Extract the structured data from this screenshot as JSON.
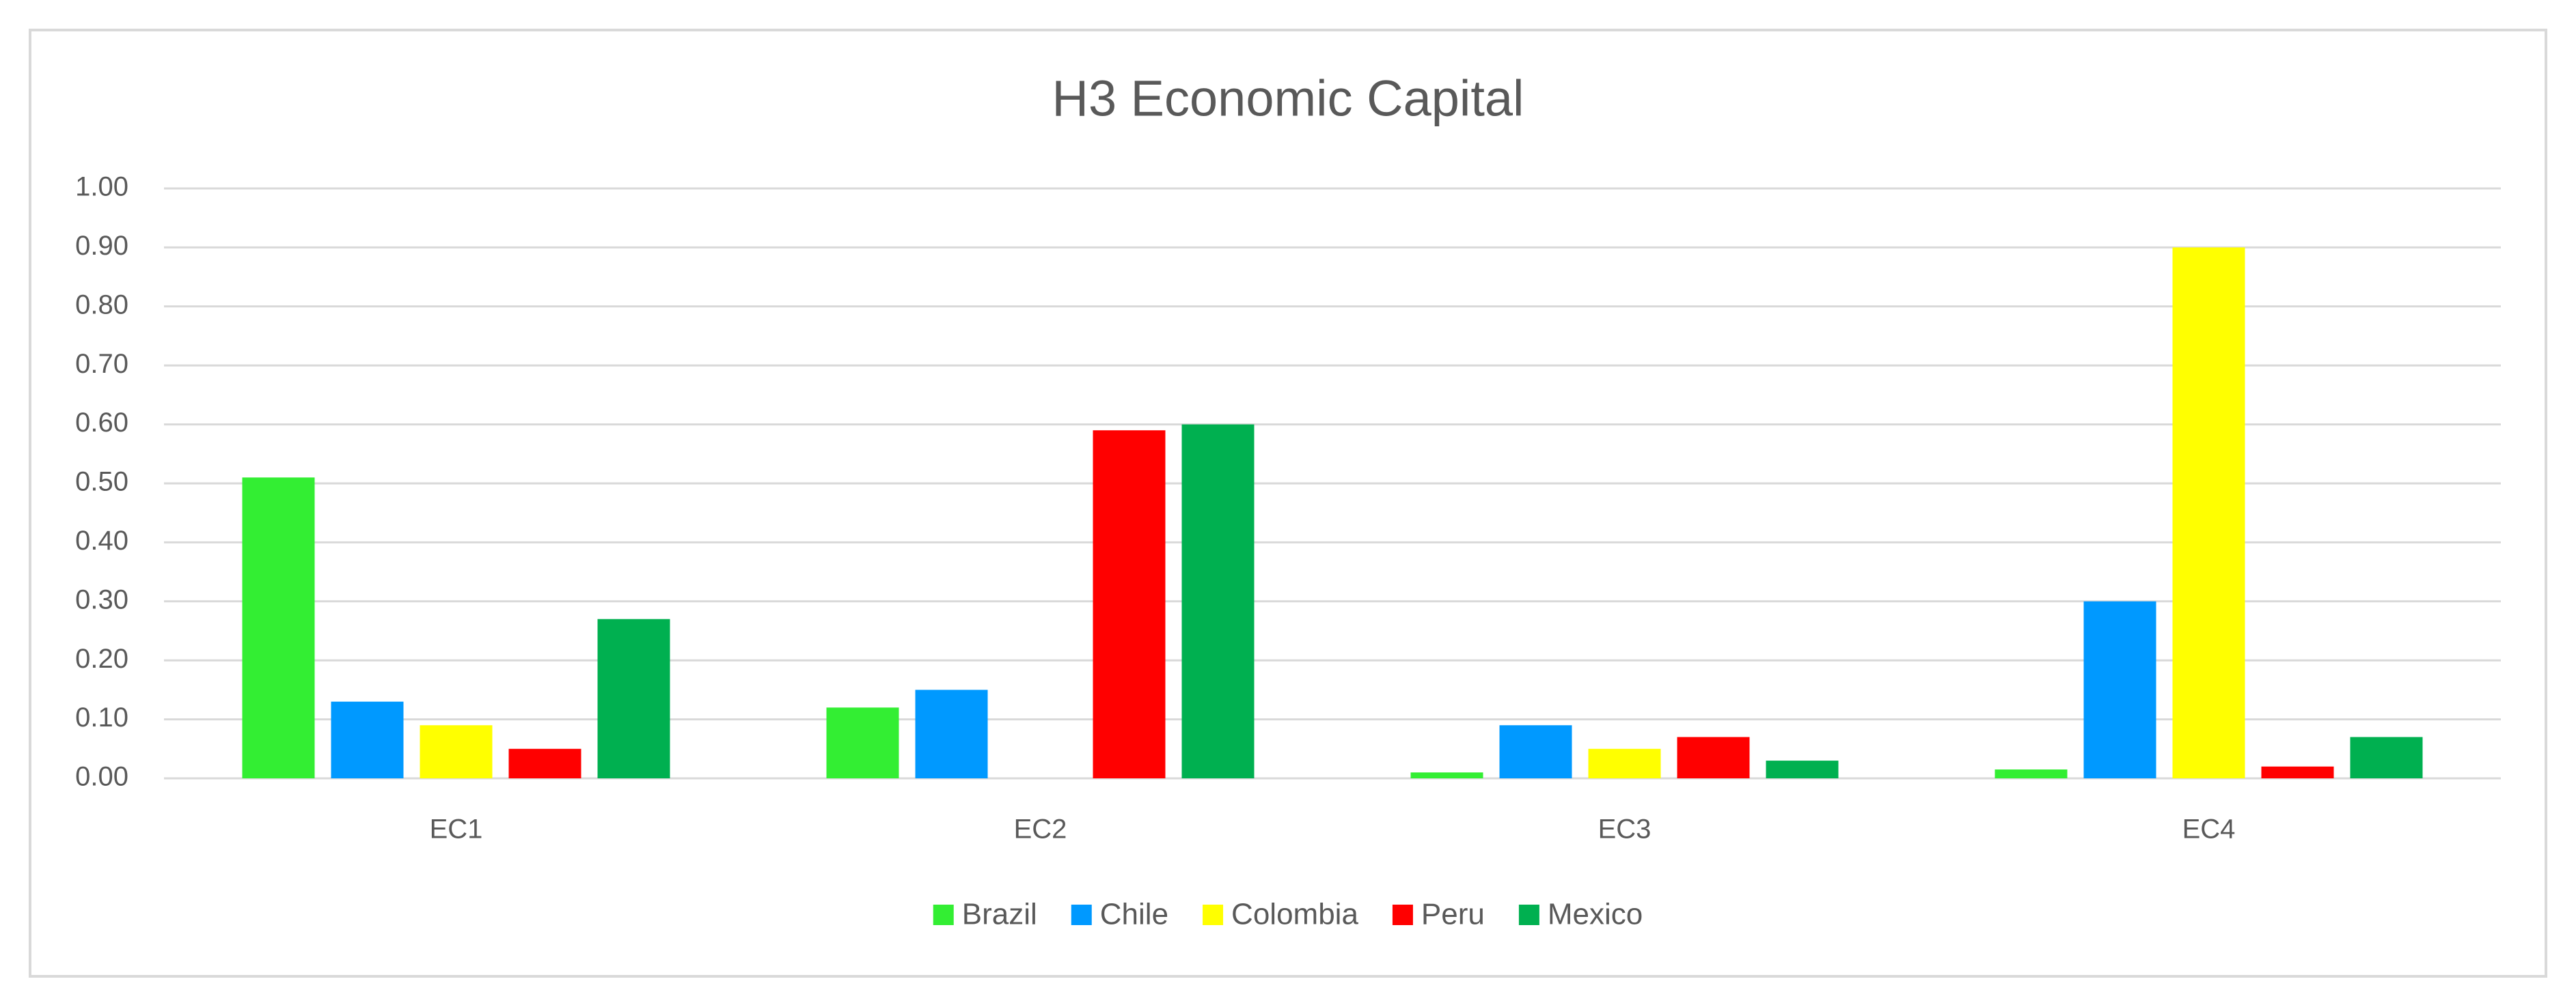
{
  "chart_data": {
    "type": "bar",
    "title": "H3 Economic Capital",
    "categories": [
      "EC1",
      "EC2",
      "EC3",
      "EC4"
    ],
    "series": [
      {
        "name": "Brazil",
        "color": "#33ee33",
        "values": [
          0.51,
          0.12,
          0.01,
          0.015
        ]
      },
      {
        "name": "Chile",
        "color": "#0099ff",
        "values": [
          0.13,
          0.15,
          0.09,
          0.3
        ]
      },
      {
        "name": "Colombia",
        "color": "#ffff00",
        "values": [
          0.09,
          0,
          0.05,
          0.9
        ]
      },
      {
        "name": "Peru",
        "color": "#ff0000",
        "values": [
          0.05,
          0.59,
          0.07,
          0.02
        ]
      },
      {
        "name": "Mexico",
        "color": "#00b050",
        "values": [
          0.27,
          0.6,
          0.03,
          0.07
        ]
      }
    ],
    "ylim": [
      0,
      1
    ],
    "yticks": [
      {
        "value": 0,
        "label": "0.00"
      },
      {
        "value": 0.1,
        "label": "0.10"
      },
      {
        "value": 0.2,
        "label": "0.20"
      },
      {
        "value": 0.3,
        "label": "0.30"
      },
      {
        "value": 0.4,
        "label": "0.40"
      },
      {
        "value": 0.5,
        "label": "0.50"
      },
      {
        "value": 0.6,
        "label": "0.60"
      },
      {
        "value": 0.7,
        "label": "0.70"
      },
      {
        "value": 0.8,
        "label": "0.80"
      },
      {
        "value": 0.9,
        "label": "0.90"
      },
      {
        "value": 1,
        "label": "1.00"
      }
    ],
    "grid": true,
    "legend": "bottom"
  }
}
